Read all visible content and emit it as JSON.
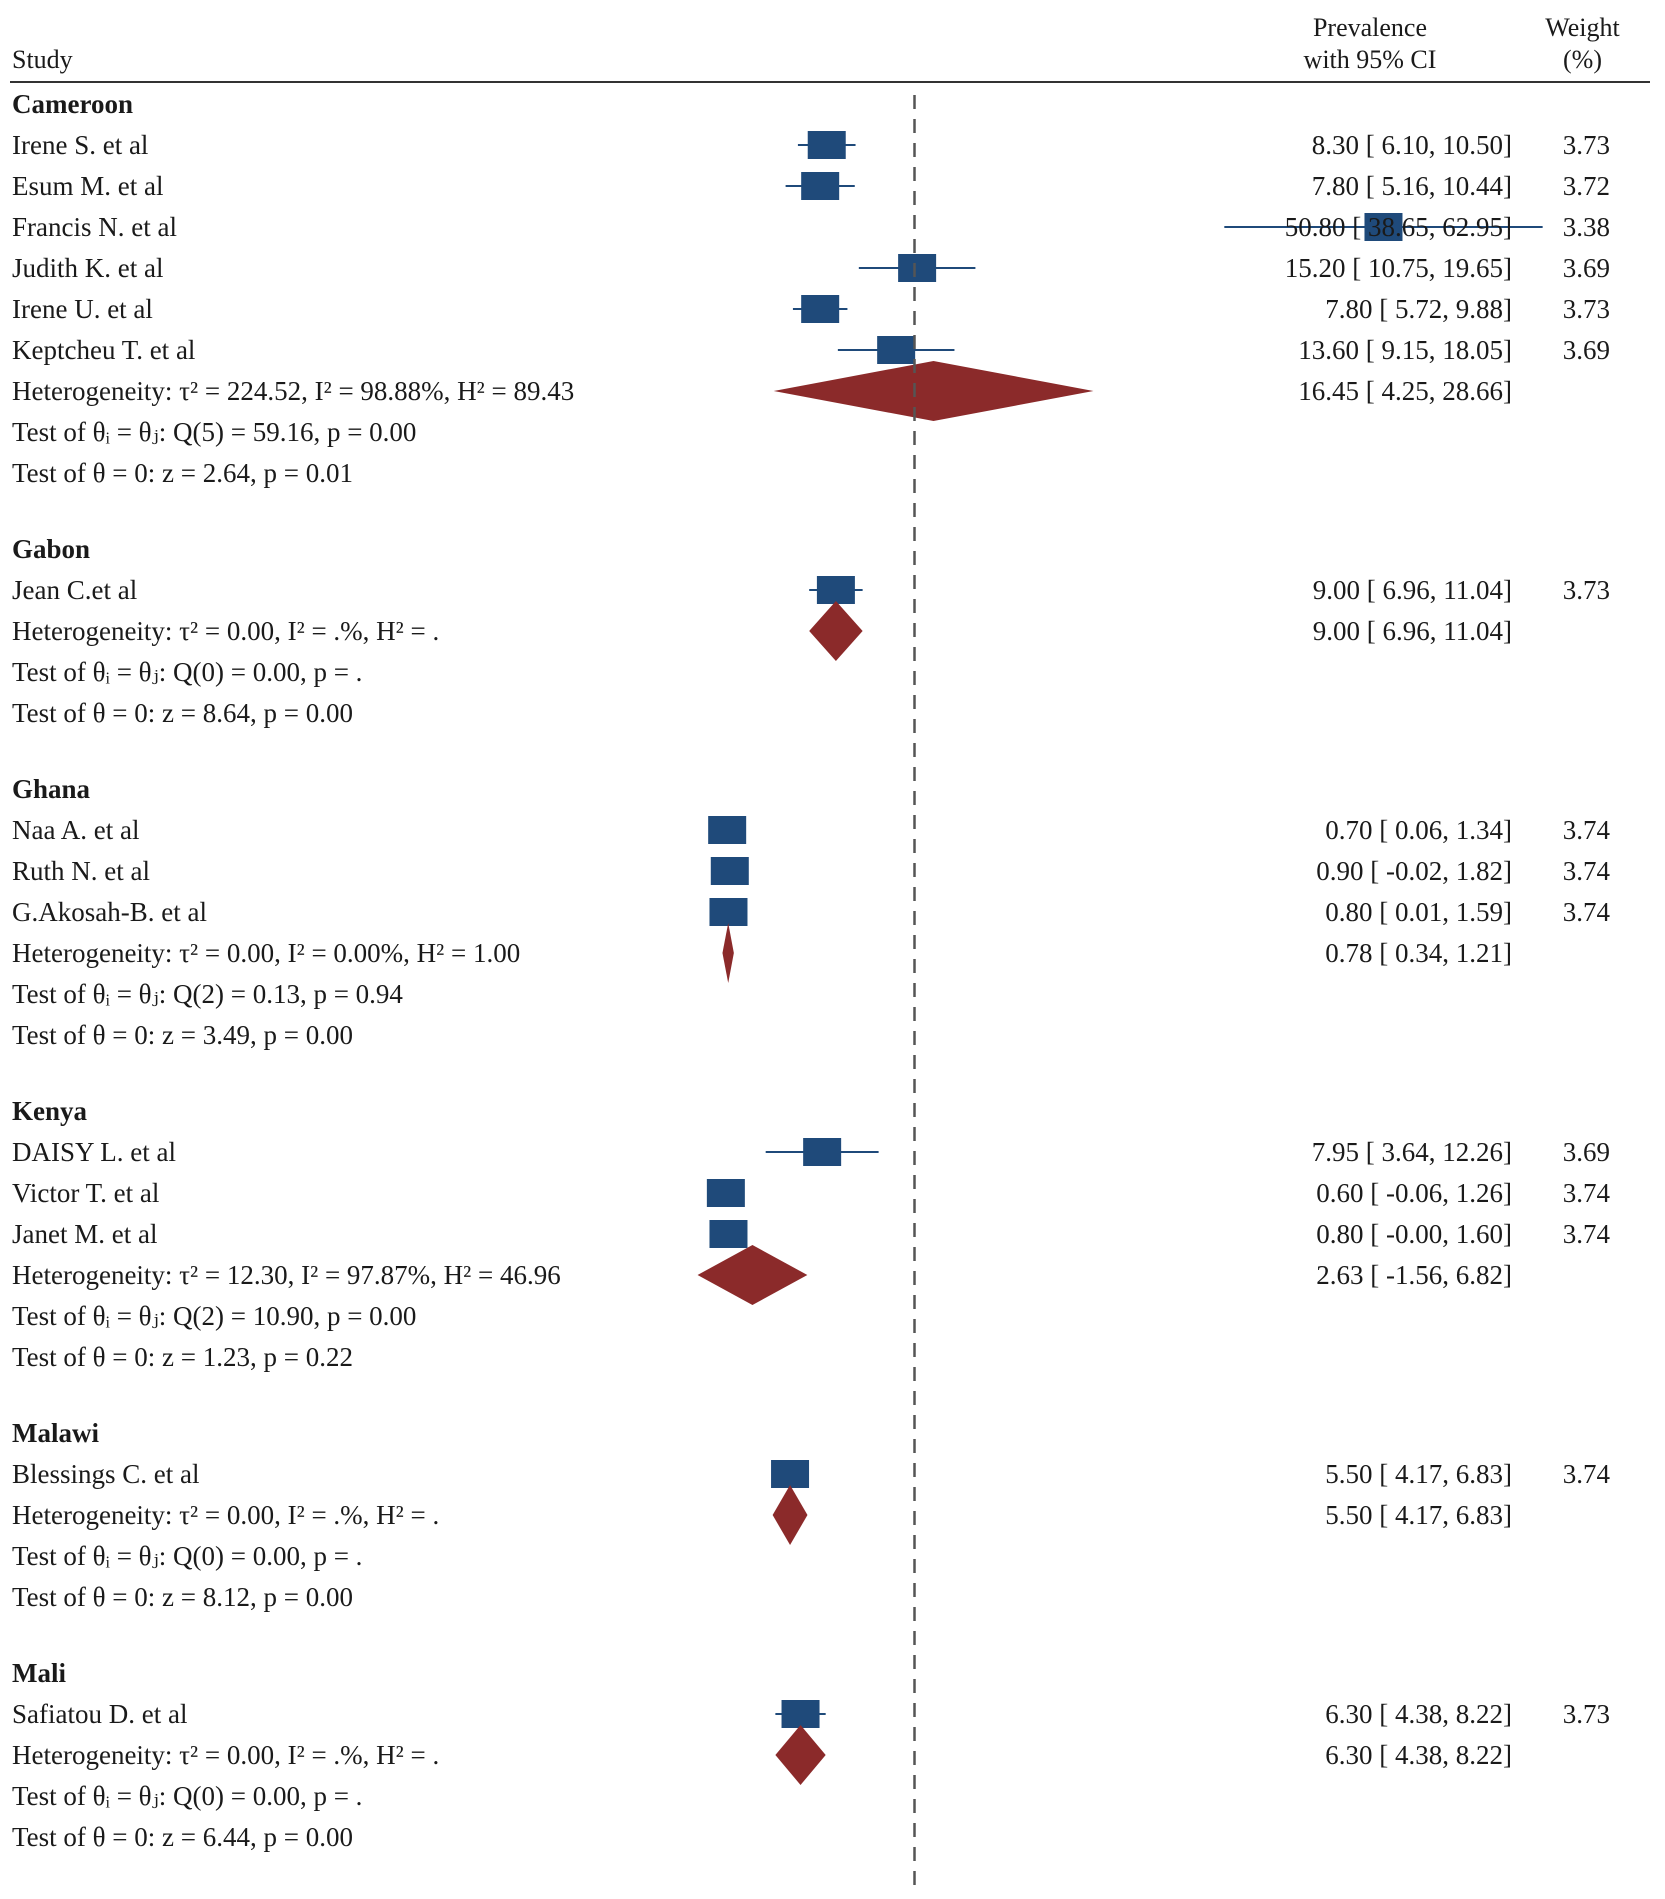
{
  "header": {
    "study_label": "Study",
    "prevalence_line1": "Prevalence",
    "prevalence_line2": "with 95% CI",
    "weight_line1": "Weight",
    "weight_line2": "(%)"
  },
  "colors": {
    "study_marker": "#1f4a7a",
    "pooled_diamond": "#8b2a2a",
    "text": "#1a1a1a",
    "reference_line": "#555555"
  },
  "chart_data": {
    "type": "forest",
    "reference_line_value": 15,
    "groups": [
      {
        "name": "Cameroon",
        "studies": [
          {
            "label": "Irene S. et al",
            "est": 8.3,
            "lo": 6.1,
            "hi": 10.5,
            "ci_text": "8.30 [ 6.10, 10.50]",
            "weight": "3.73"
          },
          {
            "label": "Esum M. et al",
            "est": 7.8,
            "lo": 5.16,
            "hi": 10.44,
            "ci_text": "7.80 [ 5.16, 10.44]",
            "weight": "3.72"
          },
          {
            "label": "Francis N. et al",
            "est": 50.8,
            "lo": 38.65,
            "hi": 62.95,
            "ci_text": "50.80 [ 38.65, 62.95]",
            "weight": "3.38"
          },
          {
            "label": "Judith K. et al",
            "est": 15.2,
            "lo": 10.75,
            "hi": 19.65,
            "ci_text": "15.20 [ 10.75, 19.65]",
            "weight": "3.69"
          },
          {
            "label": "Irene U. et al",
            "est": 7.8,
            "lo": 5.72,
            "hi": 9.88,
            "ci_text": "7.80 [ 5.72, 9.88]",
            "weight": "3.73"
          },
          {
            "label": "Keptcheu T. et al",
            "est": 13.6,
            "lo": 9.15,
            "hi": 18.05,
            "ci_text": "13.60 [ 9.15, 18.05]",
            "weight": "3.69"
          }
        ],
        "pooled": {
          "label": "Heterogeneity: τ² = 224.52, I² = 98.88%, H² = 89.43",
          "est": 16.45,
          "lo": 4.25,
          "hi": 28.66,
          "ci_text": "16.45 [ 4.25, 28.66]"
        },
        "tests": [
          "Test of θᵢ = θⱼ: Q(5) = 59.16, p = 0.00",
          "Test of θ = 0: z = 2.64, p = 0.01"
        ]
      },
      {
        "name": "Gabon",
        "studies": [
          {
            "label": "Jean C.et al",
            "est": 9.0,
            "lo": 6.96,
            "hi": 11.04,
            "ci_text": "9.00 [ 6.96, 11.04]",
            "weight": "3.73"
          }
        ],
        "pooled": {
          "label": "Heterogeneity: τ² = 0.00, I² = .%, H² = .",
          "est": 9.0,
          "lo": 6.96,
          "hi": 11.04,
          "ci_text": "9.00 [ 6.96, 11.04]"
        },
        "tests": [
          "Test of θᵢ = θⱼ: Q(0) = 0.00, p = .",
          "Test of θ = 0: z = 8.64, p = 0.00"
        ]
      },
      {
        "name": "Ghana",
        "studies": [
          {
            "label": "Naa A. et al",
            "est": 0.7,
            "lo": 0.06,
            "hi": 1.34,
            "ci_text": "0.70 [ 0.06, 1.34]",
            "weight": "3.74"
          },
          {
            "label": "Ruth N. et al",
            "est": 0.9,
            "lo": -0.02,
            "hi": 1.82,
            "ci_text": "0.90 [ -0.02, 1.82]",
            "weight": "3.74"
          },
          {
            "label": "G.Akosah-B. et al",
            "est": 0.8,
            "lo": 0.01,
            "hi": 1.59,
            "ci_text": "0.80 [ 0.01, 1.59]",
            "weight": "3.74"
          }
        ],
        "pooled": {
          "label": "Heterogeneity: τ² = 0.00, I² = 0.00%, H² = 1.00",
          "est": 0.78,
          "lo": 0.34,
          "hi": 1.21,
          "ci_text": "0.78 [ 0.34, 1.21]"
        },
        "tests": [
          "Test of θᵢ = θⱼ: Q(2) = 0.13, p = 0.94",
          "Test of θ = 0: z = 3.49, p = 0.00"
        ]
      },
      {
        "name": "Kenya",
        "studies": [
          {
            "label": "DAISY L. et al",
            "est": 7.95,
            "lo": 3.64,
            "hi": 12.26,
            "ci_text": "7.95 [ 3.64, 12.26]",
            "weight": "3.69"
          },
          {
            "label": "Victor T. et al",
            "est": 0.6,
            "lo": -0.06,
            "hi": 1.26,
            "ci_text": "0.60 [ -0.06, 1.26]",
            "weight": "3.74"
          },
          {
            "label": "Janet M. et al",
            "est": 0.8,
            "lo": -0.0,
            "hi": 1.6,
            "ci_text": "0.80 [ -0.00, 1.60]",
            "weight": "3.74"
          }
        ],
        "pooled": {
          "label": "Heterogeneity: τ² = 12.30, I² = 97.87%, H² = 46.96",
          "est": 2.63,
          "lo": -1.56,
          "hi": 6.82,
          "ci_text": "2.63 [ -1.56, 6.82]"
        },
        "tests": [
          "Test of θᵢ = θⱼ: Q(2) = 10.90, p = 0.00",
          "Test of θ = 0: z = 1.23, p = 0.22"
        ]
      },
      {
        "name": "Malawi",
        "studies": [
          {
            "label": "Blessings C. et al",
            "est": 5.5,
            "lo": 4.17,
            "hi": 6.83,
            "ci_text": "5.50 [ 4.17, 6.83]",
            "weight": "3.74"
          }
        ],
        "pooled": {
          "label": "Heterogeneity: τ² = 0.00, I² = .%, H² = .",
          "est": 5.5,
          "lo": 4.17,
          "hi": 6.83,
          "ci_text": "5.50 [ 4.17, 6.83]"
        },
        "tests": [
          "Test of θᵢ = θⱼ: Q(0) = 0.00, p = .",
          "Test of θ = 0: z = 8.12, p = 0.00"
        ]
      },
      {
        "name": "Mali",
        "studies": [
          {
            "label": "Safiatou D. et al",
            "est": 6.3,
            "lo": 4.38,
            "hi": 8.22,
            "ci_text": "6.30 [ 4.38, 8.22]",
            "weight": "3.73"
          }
        ],
        "pooled": {
          "label": "Heterogeneity: τ² = 0.00, I² = .%, H² = .",
          "est": 6.3,
          "lo": 4.38,
          "hi": 8.22,
          "ci_text": "6.30 [ 4.38, 8.22]"
        },
        "tests": [
          "Test of θᵢ = θⱼ: Q(0) = 0.00, p = .",
          "Test of θ = 0: z = 6.44, p = 0.00"
        ]
      }
    ]
  }
}
